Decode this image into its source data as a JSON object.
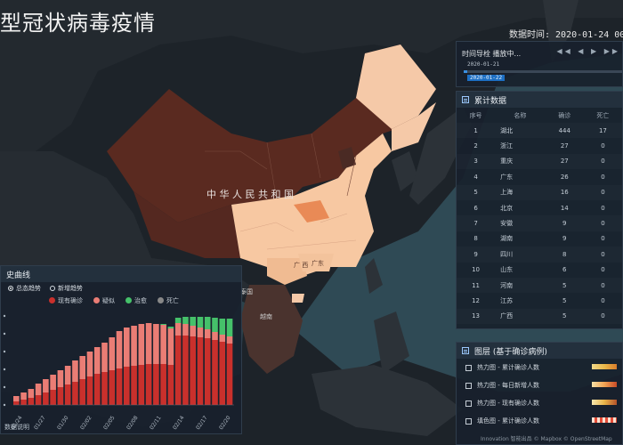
{
  "app": {
    "title": "型冠状病毒疫情",
    "time_label": "数据时间: 2020-01-24 00"
  },
  "timeline": {
    "header": "时间导栓  播放中...",
    "controls": "◀◀ ◀ ▶ ▶▶",
    "start_date": "2020-01-21",
    "current_date": "2020-01-22"
  },
  "map_labels": {
    "country": "中 华 人 民 共 和 国",
    "guangdong": "广东",
    "guangxi": "广 西",
    "vietnam": "越南",
    "thailand": "泰国"
  },
  "cumulative": {
    "title": "累计数据",
    "headers": [
      "序号",
      "名称",
      "确诊",
      "死亡"
    ],
    "rows": [
      [
        "1",
        "湖北",
        "444",
        "17"
      ],
      [
        "2",
        "浙江",
        "27",
        "0"
      ],
      [
        "3",
        "重庆",
        "27",
        "0"
      ],
      [
        "4",
        "广东",
        "26",
        "0"
      ],
      [
        "5",
        "上海",
        "16",
        "0"
      ],
      [
        "6",
        "北京",
        "14",
        "0"
      ],
      [
        "7",
        "安徽",
        "9",
        "0"
      ],
      [
        "8",
        "湖南",
        "9",
        "0"
      ],
      [
        "9",
        "四川",
        "8",
        "0"
      ],
      [
        "10",
        "山东",
        "6",
        "0"
      ],
      [
        "11",
        "河南",
        "5",
        "0"
      ],
      [
        "12",
        "江苏",
        "5",
        "0"
      ],
      [
        "13",
        "广西",
        "5",
        "0"
      ]
    ]
  },
  "layers": {
    "title": "图层 (基于确诊病例)",
    "items": [
      "热力图 - 累计确诊人数",
      "热力图 - 每日新增人数",
      "热力图 - 现有确诊人数",
      "填色图 - 累计确诊人数"
    ]
  },
  "curve": {
    "title": "史曲线",
    "tab_total": "总态趋势",
    "tab_new": "新增趋势",
    "legend": [
      "现有确诊",
      "疑似",
      "治愈",
      "死亡"
    ],
    "colors": {
      "confirmed": "#c9302c",
      "suspected": "#ea7d75",
      "cured": "#45c16a",
      "death": "#888888"
    },
    "footer": "数据说明",
    "attribution": "Innovation 智能出品 © Mapbox © OpenStreetMap"
  },
  "chart_data": {
    "type": "bar",
    "x_tick_labels": [
      "01/24",
      "01/27",
      "01/30",
      "02/02",
      "02/05",
      "02/08",
      "02/11",
      "02/14",
      "02/17",
      "02/20"
    ],
    "series": [
      {
        "name": "现有确诊",
        "values": [
          4,
          6,
          8,
          11,
          14,
          17,
          20,
          23,
          26,
          29,
          32,
          35,
          37,
          39,
          41,
          43,
          44,
          45,
          46,
          46,
          46,
          45,
          78,
          78,
          77,
          76,
          75,
          73,
          71,
          69
        ]
      },
      {
        "name": "疑似",
        "values": [
          6,
          8,
          10,
          13,
          15,
          17,
          19,
          21,
          24,
          26,
          28,
          30,
          33,
          37,
          42,
          44,
          45,
          46,
          46,
          45,
          44,
          41,
          14,
          13,
          12,
          11,
          10,
          9,
          8,
          8
        ]
      },
      {
        "name": "治愈",
        "values": [
          0,
          0,
          0,
          0,
          0,
          0,
          0,
          0,
          0,
          0,
          0,
          0,
          0,
          0,
          0,
          0,
          0,
          0,
          0,
          0,
          1,
          2,
          6,
          8,
          10,
          12,
          14,
          16,
          18,
          20
        ]
      },
      {
        "name": "死亡",
        "values": [
          0,
          0,
          0,
          0,
          0,
          0,
          0,
          0,
          0,
          0,
          0,
          0,
          0,
          0,
          0,
          0,
          0,
          0,
          0,
          0,
          0,
          0,
          0,
          0,
          0,
          0,
          0,
          0,
          0,
          0
        ]
      }
    ]
  }
}
